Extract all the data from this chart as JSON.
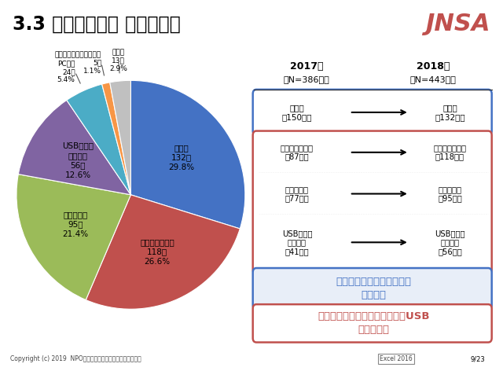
{
  "title": "3.3 媒体・経路別 漏えい件数",
  "jnsa_text": "JNSA",
  "background_color": "#ffffff",
  "pie_data": {
    "labels": [
      "紙媒体",
      "インターネット",
      "電子メール",
      "USB等可搬\n記録媒体",
      "PC本体",
      "携帯電話スマートフォン",
      "その他"
    ],
    "values": [
      132,
      118,
      95,
      56,
      24,
      5,
      13
    ],
    "percentages": [
      "29.8%",
      "26.6%",
      "21.4%",
      "12.6%",
      "5.4%",
      "1.1%",
      "2.9%"
    ],
    "counts": [
      "132件",
      "118件",
      "95件",
      "56件",
      "24件",
      "5件",
      "13件"
    ],
    "colors": [
      "#4472C4",
      "#C0504D",
      "#9BBB59",
      "#8064A2",
      "#4BACC6",
      "#F79646",
      "#C0C0C0"
    ]
  },
  "year_2017_header": "2017年",
  "year_2017_sub": "（N=386件）",
  "year_2018_header": "2018年",
  "year_2018_sub": "（N=443件）",
  "row1_2017": "紙媒体\n（150件）",
  "row1_2018": "紙媒体\n（132件）",
  "row2_2017": "インターネット\n（87件）",
  "row2_2018": "インターネット\n（118件）",
  "row3_2017": "電子メール\n（77件）",
  "row3_2018": "電子メール\n（95件）",
  "row4_2017": "USB等可搬\n記録媒体\n（41件）",
  "row4_2018": "USB等可搬\n記録媒体\n（56件）",
  "box1_color": "#4472C4",
  "box1_fill": "#E8EEF8",
  "box2_color": "#C0504D",
  "box2_fill": "#ffffff",
  "box1_text": "紙媒体による漏えい件数が\n最も多い",
  "box2_text": "インターネット・電子メール・USB\n経由が増加",
  "footer_left": "Copyright (c) 2019  NPO日本ネットワークセキュリティ協会",
  "footer_right": "Excel 2016",
  "page_num": "9/23",
  "sep_color": "#AAAAAA"
}
